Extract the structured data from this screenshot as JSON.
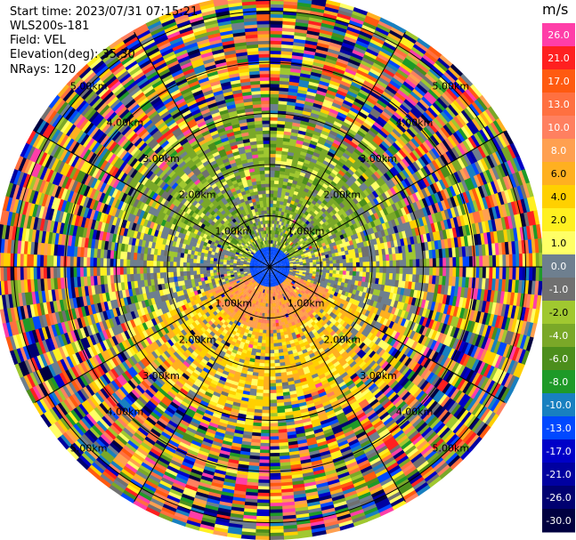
{
  "header": {
    "start_time": "Start time: 2023/07/31 07:15:21",
    "station": "WLS200s-181",
    "field": "Field: VEL",
    "elevation": "Elevation(deg): 35.30",
    "nrays": "NRays: 120"
  },
  "colorbar": {
    "unit": "m/s",
    "ticks": [
      "26.0",
      "21.0",
      "17.0",
      "13.0",
      "10.0",
      "8.0",
      "6.0",
      "4.0",
      "2.0",
      "1.0",
      "0.0",
      "-1.0",
      "-2.0",
      "-4.0",
      "-6.0",
      "-8.0",
      "-10.0",
      "-13.0",
      "-17.0",
      "-21.0",
      "-26.0",
      "-30.0"
    ],
    "colors": [
      "#ff3ea8",
      "#ff2020",
      "#ff5a10",
      "#ff7040",
      "#ff8060",
      "#ffa050",
      "#ffb020",
      "#ffd000",
      "#fff020",
      "#ffff66",
      "#6e7f8f",
      "#707070",
      "#a0c830",
      "#7aa828",
      "#4c8e1c",
      "#1e9a28",
      "#1880c0",
      "#0048ff",
      "#0000c8",
      "#0000a0",
      "#000070",
      "#000040"
    ]
  },
  "chart_data": {
    "type": "heatmap",
    "projection": "polar-ppi",
    "field": "VEL",
    "units": "m/s",
    "nrays": 120,
    "elevation_deg": 35.3,
    "range_ring_labels": [
      "1.00km",
      "2.00km",
      "3.00km",
      "4.00km",
      "5.00km"
    ],
    "max_range_km": 5.3,
    "pattern": {
      "inner_north_quadrant": "green (-2 to -6 m/s, toward)",
      "inner_south_quadrant": "orange/yellow (+2 to +8 m/s, away)",
      "east_west": "gray (~0 m/s)",
      "outer_rings": "noisy multicolour beyond ~3 km"
    }
  }
}
